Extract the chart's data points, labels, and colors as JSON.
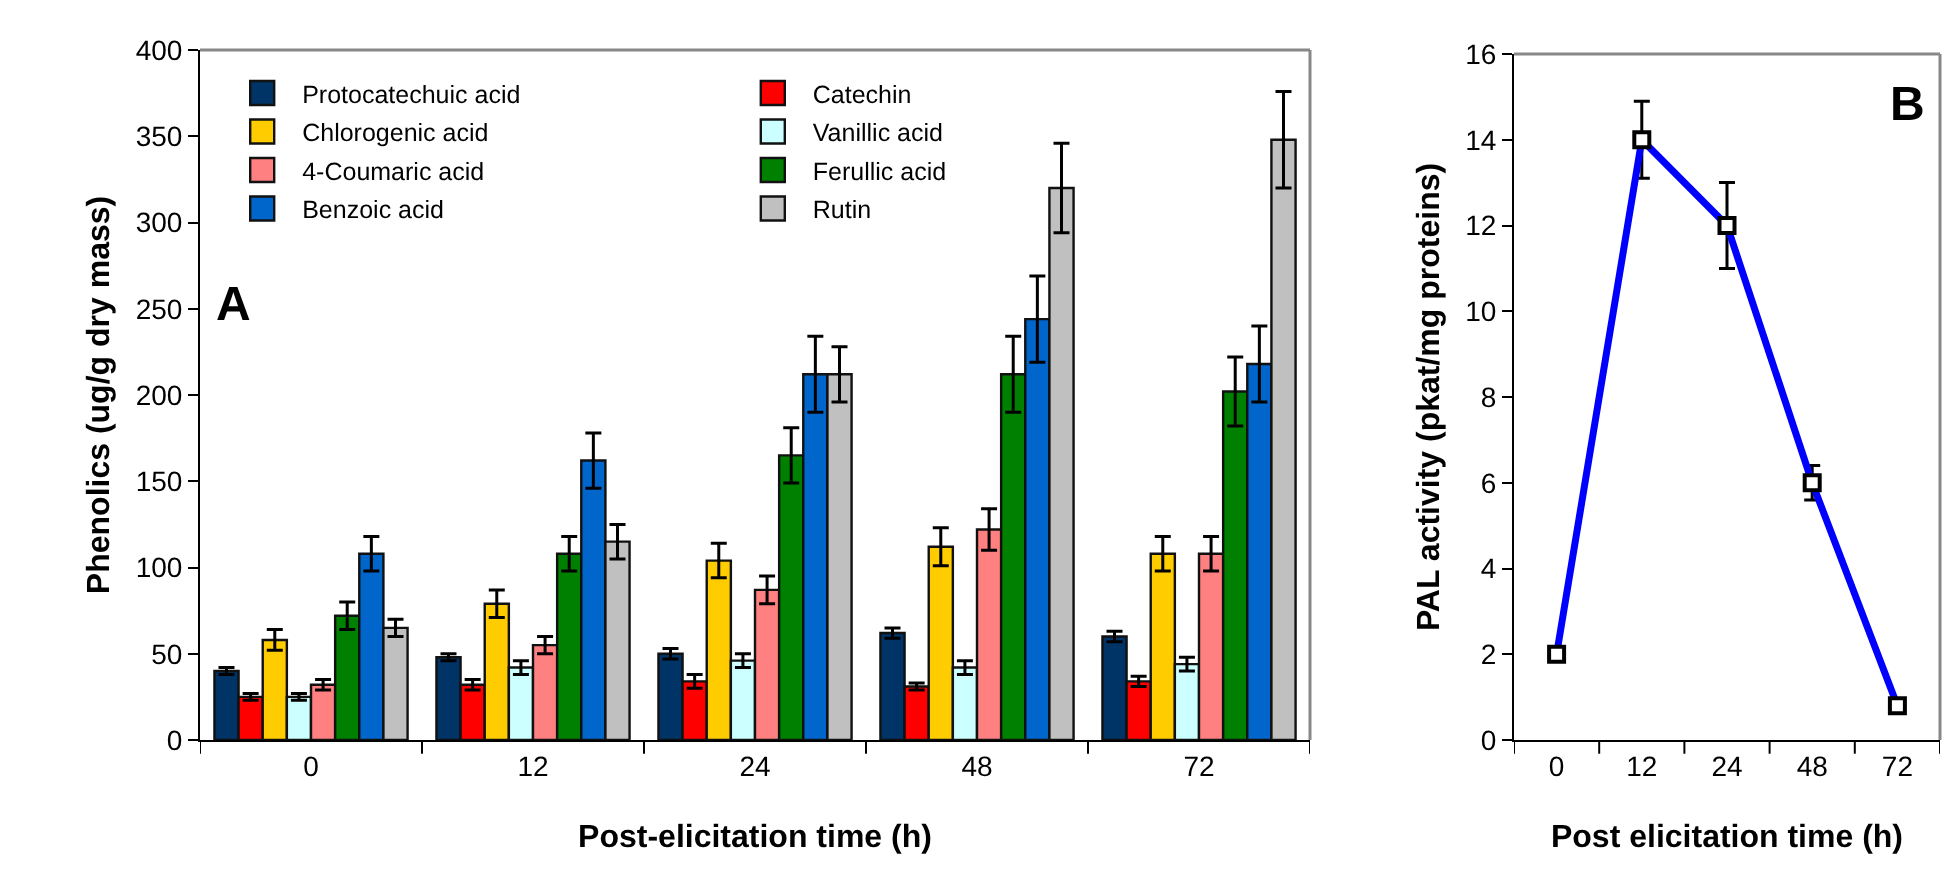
{
  "chart_data": [
    {
      "type": "bar",
      "annotations": [
        "A"
      ],
      "xlabel": "Post-elicitation time (h)",
      "ylabel": "Phenolics (ug/g dry mass)",
      "categories": [
        "0",
        "12",
        "24",
        "48",
        "72"
      ],
      "series": [
        {
          "name": "Protocatechuic acid",
          "color": "#003366",
          "values": [
            40,
            48,
            50,
            62,
            60
          ],
          "errors": [
            2,
            2,
            3,
            3,
            3
          ]
        },
        {
          "name": "Catechin",
          "color": "#ff0000",
          "values": [
            25,
            32,
            34,
            31,
            34
          ],
          "errors": [
            2,
            3,
            4,
            2,
            3
          ]
        },
        {
          "name": "Chlorogenic acid",
          "color": "#ffcc00",
          "values": [
            58,
            79,
            104,
            112,
            108
          ],
          "errors": [
            6,
            8,
            10,
            11,
            10
          ]
        },
        {
          "name": "Vanillic acid",
          "color": "#ccffff",
          "values": [
            25,
            42,
            46,
            42,
            44
          ],
          "errors": [
            2,
            4,
            4,
            4,
            4
          ]
        },
        {
          "name": "4-Coumaric acid",
          "color": "#ff8080",
          "values": [
            32,
            55,
            87,
            122,
            108
          ],
          "errors": [
            3,
            5,
            8,
            12,
            10
          ]
        },
        {
          "name": "Ferullic acid",
          "color": "#008000",
          "values": [
            72,
            108,
            165,
            212,
            202
          ],
          "errors": [
            8,
            10,
            16,
            22,
            20
          ]
        },
        {
          "name": "Benzoic acid",
          "color": "#0066cc",
          "values": [
            108,
            162,
            212,
            244,
            218
          ],
          "errors": [
            10,
            16,
            22,
            25,
            22
          ]
        },
        {
          "name": "Rutin",
          "color": "#c0c0c0",
          "values": [
            65,
            115,
            212,
            320,
            348
          ],
          "errors": [
            5,
            10,
            16,
            26,
            28
          ]
        }
      ],
      "ylim": [
        0,
        400
      ],
      "yticks": [
        0,
        50,
        100,
        150,
        200,
        250,
        300,
        350,
        400
      ],
      "grid": false,
      "legend": "top left"
    },
    {
      "type": "line",
      "annotations": [
        "B"
      ],
      "xlabel": "Post elicitation time (h)",
      "ylabel": "PAL activity (pkat/mg proteins)",
      "categories": [
        "0",
        "12",
        "24",
        "48",
        "72"
      ],
      "series": [
        {
          "color": "#0000ff",
          "values": [
            2,
            14,
            12,
            6,
            0.8
          ],
          "errors": [
            0.1,
            0.9,
            1,
            0.4,
            0.1
          ]
        }
      ],
      "ylim": [
        0,
        16
      ],
      "yticks": [
        0,
        2,
        4,
        6,
        8,
        10,
        12,
        14,
        16
      ],
      "grid": false,
      "legend": false,
      "marker": "square",
      "line_style": "solid"
    }
  ]
}
